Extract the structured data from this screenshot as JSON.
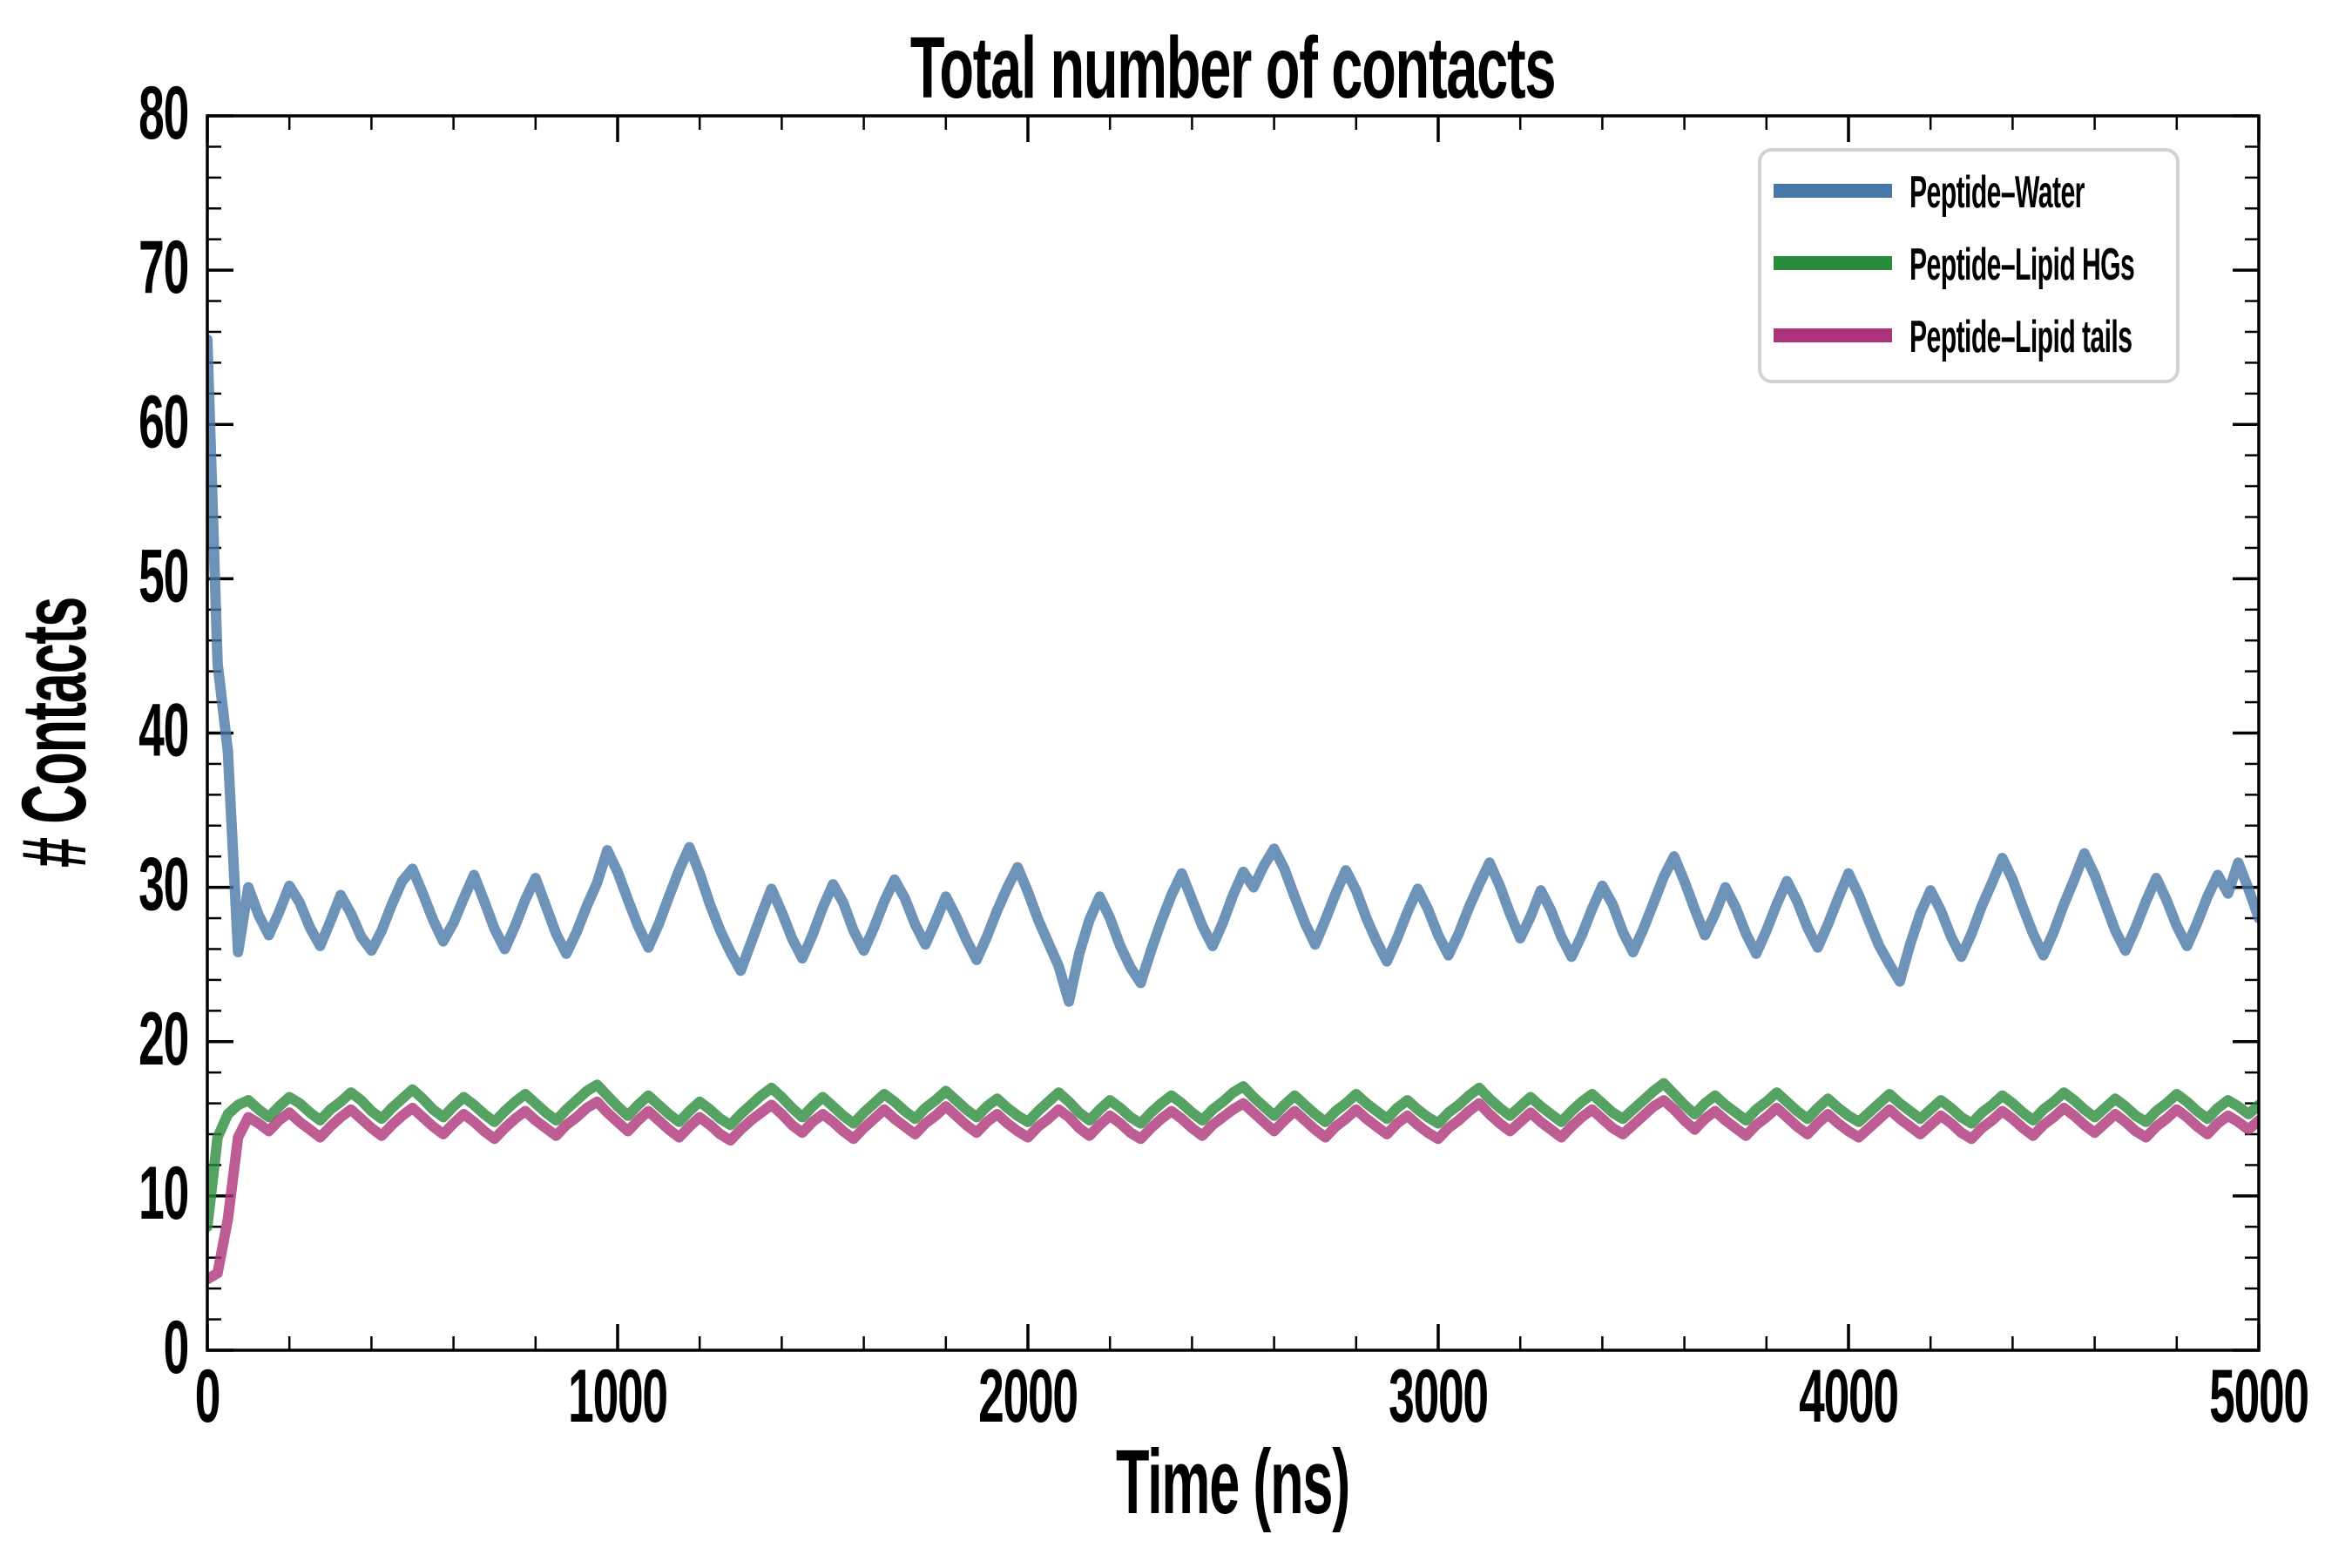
{
  "figure": {
    "background": "#ffffff",
    "text_color": "#000000"
  },
  "chart_data": {
    "type": "line",
    "title": "Total number of contacts",
    "xlabel": "Time (ns)",
    "ylabel": "# Contacts",
    "xlim": [
      0,
      5000
    ],
    "ylim": [
      0,
      80
    ],
    "xticks": [
      0,
      1000,
      2000,
      3000,
      4000,
      5000
    ],
    "x_minor_step": 200,
    "yticks": [
      0,
      10,
      20,
      30,
      40,
      50,
      60,
      70,
      80
    ],
    "y_minor_step": 2,
    "grid": false,
    "tick_direction": "in",
    "axis_color": "#000000",
    "legend_position": "upper right",
    "legend_border_color": "#d2d2d2",
    "legend_background": "rgba(255,255,255,0.9)",
    "line_width": 12,
    "line_alpha": 0.8,
    "x_start": 0,
    "x_step": 25,
    "series": [
      {
        "name": "Peptide–Water",
        "color": "#4878a8",
        "values": [
          65.5,
          44.5,
          38.8,
          25.8,
          30.0,
          28.2,
          26.9,
          28.4,
          30.1,
          29.0,
          27.4,
          26.2,
          27.8,
          29.5,
          28.3,
          26.8,
          25.9,
          27.2,
          28.9,
          30.4,
          31.2,
          29.6,
          27.9,
          26.5,
          27.7,
          29.3,
          30.8,
          29.1,
          27.3,
          26.0,
          27.5,
          29.2,
          30.6,
          28.8,
          27.0,
          25.7,
          27.1,
          28.8,
          30.3,
          32.4,
          31.0,
          29.2,
          27.5,
          26.1,
          27.6,
          29.4,
          31.1,
          32.6,
          30.9,
          28.9,
          27.2,
          25.8,
          24.6,
          26.4,
          28.2,
          29.9,
          28.4,
          26.7,
          25.4,
          26.9,
          28.7,
          30.2,
          29.0,
          27.2,
          25.9,
          27.4,
          29.1,
          30.5,
          29.3,
          27.6,
          26.3,
          27.8,
          29.4,
          28.1,
          26.6,
          25.3,
          26.8,
          28.5,
          30.0,
          31.3,
          29.7,
          27.9,
          26.4,
          24.9,
          22.6,
          25.7,
          27.9,
          29.4,
          28.0,
          26.2,
          24.8,
          23.8,
          25.9,
          27.8,
          29.5,
          30.9,
          29.2,
          27.5,
          26.2,
          27.7,
          29.5,
          31.0,
          30.0,
          31.4,
          32.5,
          31.2,
          29.4,
          27.7,
          26.3,
          27.9,
          29.6,
          31.1,
          29.8,
          28.0,
          26.5,
          25.2,
          26.7,
          28.4,
          29.9,
          28.6,
          26.9,
          25.6,
          27.0,
          28.7,
          30.2,
          31.6,
          30.1,
          28.3,
          26.7,
          28.1,
          29.8,
          28.5,
          26.8,
          25.5,
          26.9,
          28.6,
          30.1,
          28.9,
          27.1,
          25.8,
          27.3,
          29.0,
          30.7,
          32.0,
          30.4,
          28.6,
          26.9,
          28.3,
          30.0,
          28.7,
          27.0,
          25.7,
          27.2,
          28.9,
          30.4,
          29.1,
          27.4,
          26.1,
          27.6,
          29.3,
          30.9,
          29.5,
          27.8,
          26.2,
          25.0,
          23.9,
          26.3,
          28.3,
          29.8,
          28.5,
          26.8,
          25.5,
          27.0,
          28.8,
          30.3,
          31.9,
          30.5,
          28.7,
          27.0,
          25.6,
          27.1,
          28.9,
          30.5,
          32.2,
          30.8,
          29.0,
          27.2,
          25.9,
          27.4,
          29.1,
          30.6,
          29.2,
          27.5,
          26.2,
          27.7,
          29.4,
          30.8,
          29.6,
          31.6,
          29.9,
          28.0
        ]
      },
      {
        "name": "Peptide–Lipid HGs",
        "color": "#2a8b3c",
        "values": [
          8.0,
          13.8,
          15.3,
          15.9,
          16.2,
          15.6,
          15.1,
          15.8,
          16.4,
          16.0,
          15.4,
          14.9,
          15.6,
          16.1,
          16.7,
          16.2,
          15.5,
          15.0,
          15.7,
          16.3,
          16.9,
          16.3,
          15.6,
          15.1,
          15.8,
          16.4,
          15.9,
          15.3,
          14.8,
          15.5,
          16.1,
          16.6,
          16.0,
          15.4,
          14.9,
          15.6,
          16.2,
          16.8,
          17.2,
          16.5,
          15.8,
          15.2,
          15.9,
          16.5,
          15.9,
          15.3,
          14.8,
          15.5,
          16.1,
          15.6,
          15.0,
          14.6,
          15.3,
          15.9,
          16.5,
          17.0,
          16.4,
          15.7,
          15.1,
          15.8,
          16.4,
          15.8,
          15.2,
          14.7,
          15.4,
          16.0,
          16.6,
          16.1,
          15.5,
          15.0,
          15.7,
          16.2,
          16.8,
          16.2,
          15.6,
          15.1,
          15.8,
          16.3,
          15.7,
          15.2,
          14.8,
          15.5,
          16.1,
          16.7,
          16.1,
          15.4,
          14.9,
          15.6,
          16.2,
          15.7,
          15.1,
          14.7,
          15.4,
          16.0,
          16.5,
          16.0,
          15.4,
          14.9,
          15.6,
          16.1,
          16.7,
          17.1,
          16.4,
          15.8,
          15.2,
          15.9,
          16.5,
          15.9,
          15.3,
          14.8,
          15.5,
          16.0,
          16.6,
          16.0,
          15.5,
          15.0,
          15.7,
          16.2,
          15.6,
          15.1,
          14.7,
          15.4,
          15.9,
          16.5,
          17.0,
          16.3,
          15.7,
          15.2,
          15.8,
          16.4,
          15.8,
          15.3,
          14.8,
          15.5,
          16.1,
          16.6,
          16.0,
          15.4,
          15.0,
          15.6,
          16.2,
          16.8,
          17.3,
          16.6,
          15.9,
          15.3,
          16.0,
          16.5,
          15.9,
          15.4,
          14.9,
          15.6,
          16.1,
          16.7,
          16.1,
          15.5,
          15.0,
          15.7,
          16.3,
          15.7,
          15.2,
          14.8,
          15.4,
          16.0,
          16.6,
          16.0,
          15.5,
          15.0,
          15.6,
          16.2,
          15.7,
          15.1,
          14.7,
          15.4,
          15.9,
          16.5,
          16.0,
          15.4,
          14.9,
          15.6,
          16.1,
          16.7,
          16.2,
          15.6,
          15.1,
          15.7,
          16.3,
          15.8,
          15.2,
          14.8,
          15.5,
          16.0,
          16.6,
          16.1,
          15.5,
          15.0,
          15.7,
          16.2,
          15.8,
          15.3,
          15.9
        ]
      },
      {
        "name": "Peptide–Lipid tails",
        "color": "#ac3478",
        "values": [
          4.6,
          5.0,
          8.5,
          13.8,
          15.1,
          14.7,
          14.2,
          14.9,
          15.4,
          14.8,
          14.3,
          13.8,
          14.5,
          15.1,
          15.6,
          15.0,
          14.4,
          13.9,
          14.6,
          15.2,
          15.7,
          15.1,
          14.5,
          14.0,
          14.7,
          15.3,
          14.8,
          14.2,
          13.7,
          14.4,
          15.0,
          15.5,
          14.9,
          14.4,
          13.9,
          14.6,
          15.1,
          15.7,
          16.1,
          15.4,
          14.8,
          14.2,
          14.9,
          15.5,
          14.9,
          14.3,
          13.8,
          14.5,
          15.1,
          14.6,
          14.0,
          13.6,
          14.3,
          14.9,
          15.4,
          15.9,
          15.3,
          14.6,
          14.1,
          14.8,
          15.3,
          14.8,
          14.2,
          13.7,
          14.4,
          15.0,
          15.6,
          15.0,
          14.5,
          14.0,
          14.7,
          15.2,
          15.8,
          15.2,
          14.6,
          14.1,
          14.8,
          15.3,
          14.7,
          14.2,
          13.8,
          14.5,
          15.0,
          15.6,
          15.1,
          14.4,
          13.9,
          14.6,
          15.2,
          14.7,
          14.1,
          13.7,
          14.4,
          15.0,
          15.5,
          15.0,
          14.4,
          13.9,
          14.6,
          15.1,
          15.6,
          16.0,
          15.4,
          14.8,
          14.2,
          14.9,
          15.5,
          14.9,
          14.3,
          13.8,
          14.5,
          15.0,
          15.6,
          15.0,
          14.5,
          14.0,
          14.7,
          15.2,
          14.6,
          14.1,
          13.7,
          14.4,
          14.9,
          15.5,
          16.0,
          15.3,
          14.7,
          14.2,
          14.8,
          15.4,
          14.8,
          14.3,
          13.8,
          14.5,
          15.1,
          15.6,
          15.0,
          14.4,
          14.0,
          14.6,
          15.2,
          15.8,
          16.2,
          15.6,
          14.9,
          14.3,
          15.0,
          15.5,
          14.9,
          14.4,
          13.9,
          14.6,
          15.1,
          15.7,
          15.1,
          14.5,
          14.0,
          14.7,
          15.3,
          14.7,
          14.2,
          13.8,
          14.4,
          15.0,
          15.6,
          15.0,
          14.5,
          14.0,
          14.6,
          15.2,
          14.7,
          14.1,
          13.7,
          14.4,
          14.9,
          15.5,
          15.0,
          14.4,
          13.9,
          14.6,
          15.1,
          15.7,
          15.2,
          14.6,
          14.1,
          14.7,
          15.3,
          14.8,
          14.2,
          13.8,
          14.5,
          15.0,
          15.6,
          15.1,
          14.5,
          14.0,
          14.7,
          15.2,
          14.8,
          14.3,
          14.9
        ]
      }
    ]
  }
}
